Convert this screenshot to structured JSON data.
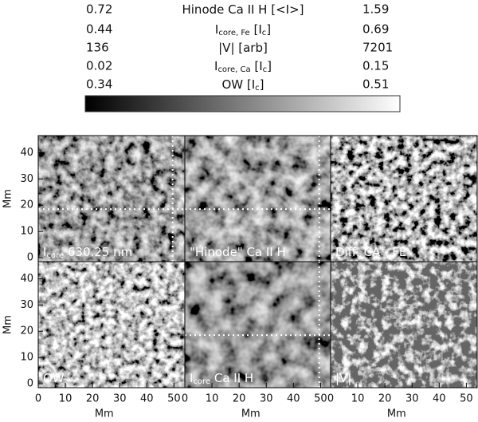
{
  "legend": {
    "rows": [
      {
        "min": 0.72,
        "label": [
          {
            "text": "Hinode Ca II H [<I>]"
          }
        ],
        "max": 1.59
      },
      {
        "min": 0.44,
        "label": [
          {
            "text": "I"
          },
          {
            "sub": "core, Fe"
          },
          {
            "text": " [I"
          },
          {
            "sub": "c"
          },
          {
            "text": "]"
          }
        ],
        "max": 0.69
      },
      {
        "min": 136,
        "label": [
          {
            "text": "|V| [arb]"
          }
        ],
        "max": 7201
      },
      {
        "min": 0.02,
        "label": [
          {
            "text": "I"
          },
          {
            "sub": "core, Ca"
          },
          {
            "text": " [I"
          },
          {
            "sub": "c"
          },
          {
            "text": "]"
          }
        ],
        "max": 0.15
      },
      {
        "min": 0.34,
        "label": [
          {
            "text": "OW [I"
          },
          {
            "sub": "c"
          },
          {
            "text": "]"
          }
        ],
        "max": 0.51
      }
    ]
  },
  "axes": {
    "xlabel": "Mm",
    "ylabel": "Mm",
    "xlim": [
      0,
      54
    ],
    "xticks": [
      0,
      10,
      20,
      30,
      40,
      50
    ],
    "ylim": [
      -1.5,
      46.5
    ],
    "yticks": [
      0,
      10,
      20,
      30,
      40
    ]
  },
  "crosshair": {
    "x": 49.5,
    "y": 18.5
  },
  "panels": [
    {
      "label": [
        {
          "text": "I"
        },
        {
          "sub": "core"
        },
        {
          "text": " 630.25 nm"
        }
      ],
      "crosshair": true
    },
    {
      "label": [
        {
          "text": "\"Hinode\" Ca II H"
        }
      ],
      "crosshair": true
    },
    {
      "label": [
        {
          "text": "Diff. CA - FE"
        }
      ],
      "crosshair": false
    },
    {
      "label": [
        {
          "text": "OW"
        }
      ],
      "crosshair": false
    },
    {
      "label": [
        {
          "text": "I"
        },
        {
          "sub": "core"
        },
        {
          "text": " Ca II H"
        }
      ],
      "crosshair": true
    },
    {
      "label": [
        {
          "text": "|V|"
        }
      ],
      "crosshair": false
    }
  ]
}
